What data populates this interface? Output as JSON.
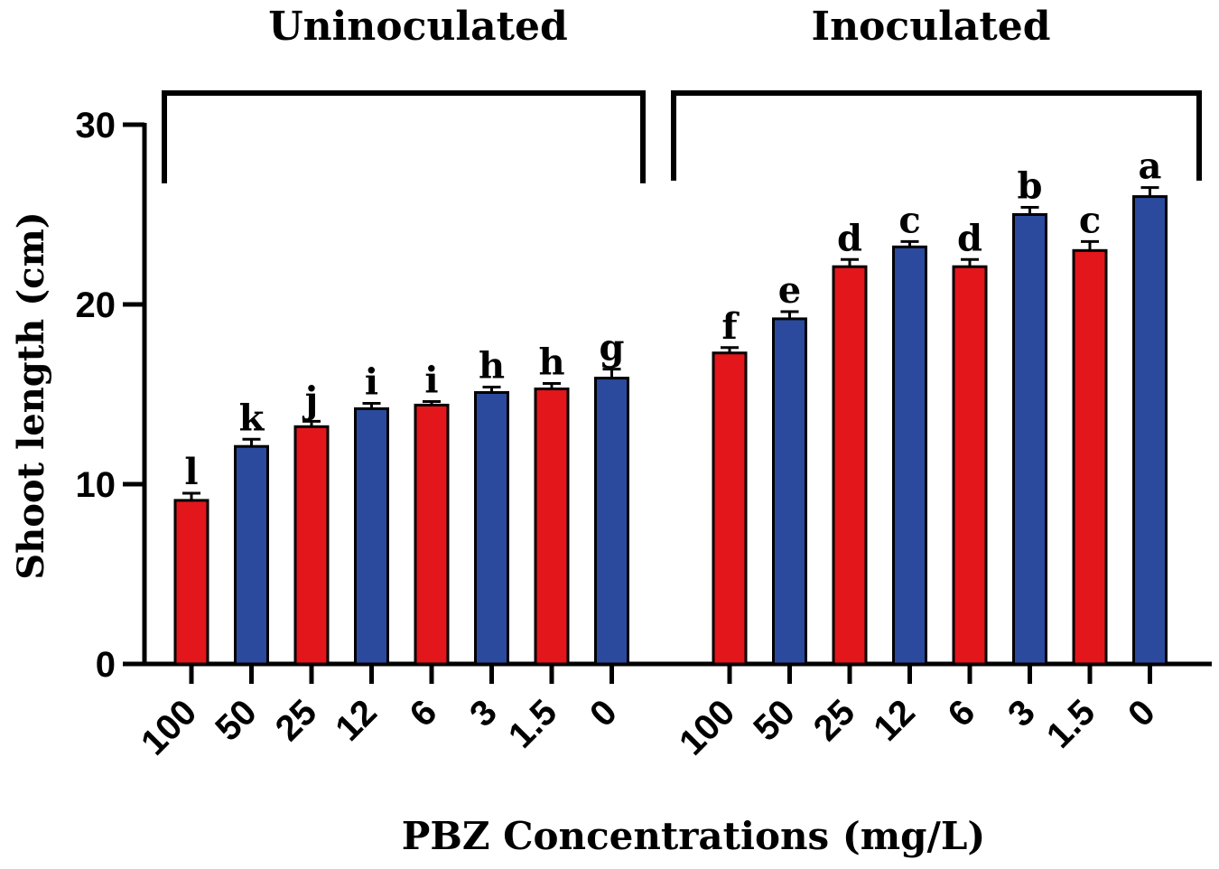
{
  "chart_data": {
    "type": "bar",
    "ylabel": "Shoot length (cm)",
    "xlabel": "PBZ Concentrations (mg/L)",
    "ylim": [
      0,
      30
    ],
    "yticks": [
      0,
      10,
      20,
      30
    ],
    "grid": false,
    "colors": {
      "red": "#e3161b",
      "blue": "#2b4a9e",
      "axis": "#000000"
    },
    "groups": [
      {
        "name": "Uninoculated",
        "categories": [
          "100",
          "50",
          "25",
          "12",
          "6",
          "3",
          "1.5",
          "0"
        ],
        "values": [
          9.1,
          12.1,
          13.2,
          14.2,
          14.4,
          15.1,
          15.3,
          15.9
        ],
        "errors": [
          0.4,
          0.4,
          0.3,
          0.3,
          0.2,
          0.3,
          0.3,
          0.5
        ],
        "letters": [
          "l",
          "k",
          "j",
          "i",
          "i",
          "h",
          "h",
          "g"
        ],
        "bar_colors": [
          "red",
          "blue",
          "red",
          "blue",
          "red",
          "blue",
          "red",
          "blue"
        ]
      },
      {
        "name": "Inoculated",
        "categories": [
          "100",
          "50",
          "25",
          "12",
          "6",
          "3",
          "1.5",
          "0"
        ],
        "values": [
          17.3,
          19.2,
          22.1,
          23.2,
          22.1,
          25.0,
          23.0,
          26.0
        ],
        "errors": [
          0.3,
          0.4,
          0.4,
          0.3,
          0.4,
          0.4,
          0.5,
          0.5
        ],
        "letters": [
          "f",
          "e",
          "d",
          "c",
          "d",
          "b",
          "c",
          "a"
        ],
        "bar_colors": [
          "red",
          "blue",
          "red",
          "blue",
          "red",
          "blue",
          "red",
          "blue"
        ]
      }
    ]
  }
}
